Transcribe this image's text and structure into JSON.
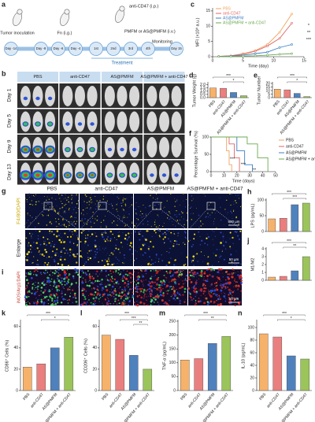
{
  "figure": {
    "a": {
      "label": "a",
      "inoculation": "Tumor inoculation",
      "fn": "Fn (i.g.)",
      "anti": "anti-CD47 (i.p.)",
      "pmfm": "PMFM or AS@PMFM (i.v.)",
      "monitoring": "Monitoring",
      "treatment": "Treatment",
      "days": [
        "Day -14",
        "Day -8",
        "Day -6",
        "Day -4",
        "1st",
        "2nd",
        "3rd",
        "4th",
        "Day 15"
      ]
    },
    "b": {
      "label": "b",
      "groups": [
        "PBS",
        "anti-CD47",
        "AS@PMFM",
        "AS@PMFM + anti-CD47"
      ],
      "rows": [
        "Day 1",
        "Day 5",
        "Day 9",
        "Day 13"
      ]
    },
    "g": {
      "label": "g",
      "groups": [
        "PBS",
        "anti-CD47",
        "AS@PMFM",
        "AS@PMFM + anti-CD47"
      ],
      "rows": [
        "F4/80/DAPI",
        "Enlarge"
      ],
      "scale_bars": [
        "500 μm",
        "50 μm"
      ]
    },
    "i": {
      "label": "i",
      "stain": "iNOS/Arg1/DAPI",
      "scale_bar": "50 μm"
    }
  },
  "chart_data": [
    {
      "label": "c",
      "type": "line",
      "x_label": "Time (day)",
      "y_label": "MFI (×10⁸ a.u.)",
      "x": [
        1,
        3,
        5,
        7,
        9,
        11,
        13
      ],
      "xlim": [
        0,
        15
      ],
      "xticks": [
        0,
        5,
        10,
        15
      ],
      "ylim": [
        0,
        16
      ],
      "yticks": [
        0,
        5,
        10,
        15
      ],
      "legend": "upper left",
      "markers": true,
      "series": [
        {
          "name": "PBS",
          "color": "#f0a35e",
          "values": [
            0.1,
            0.3,
            1,
            2,
            4,
            8,
            14
          ]
        },
        {
          "name": "anti-CD47",
          "color": "#e06666",
          "values": [
            0.1,
            0.3,
            0.8,
            1.8,
            3.5,
            6,
            11
          ]
        },
        {
          "name": "AS@PMFM",
          "color": "#3d7fc4",
          "values": [
            0.1,
            0.2,
            0.5,
            1,
            1.5,
            3,
            4
          ]
        },
        {
          "name": "AS@PMFM + anti-CD47",
          "color": "#6aa84f",
          "values": [
            0.1,
            0.1,
            0.2,
            0.3,
            0.5,
            0.8,
            1
          ]
        }
      ],
      "annotations": [
        "*",
        "**",
        "***"
      ]
    },
    {
      "label": "d",
      "type": "bar",
      "y_label": "Tumor Weight (g)",
      "categories": [
        "PBS",
        "anti-CD47",
        "AS@PMFM",
        "AS@PMFM + anti-CD47"
      ],
      "values": [
        1.5,
        1.45,
        0.8,
        0.3
      ],
      "colors": [
        "#f6b26b",
        "#ea7f7f",
        "#4f81bd",
        "#9bc45a"
      ],
      "ylim": [
        0,
        2.2
      ],
      "yticks": [
        {
          "value": 0,
          "label": "0.0"
        },
        0.5,
        {
          "value": 1,
          "label": "1.0"
        },
        1.5,
        {
          "value": 2,
          "label": "2.0"
        }
      ],
      "annotations": [
        "***",
        "*"
      ]
    },
    {
      "label": "e",
      "type": "bar",
      "y_label": "Tumor Number",
      "categories": [
        "PBS",
        "anti-CD47",
        "AS@PMFM",
        "AS@PMFM + anti-CD47"
      ],
      "values": [
        12,
        11,
        6,
        1.5
      ],
      "colors": [
        "#f6b26b",
        "#ea7f7f",
        "#4f81bd",
        "#9bc45a"
      ],
      "ylim": [
        0,
        20
      ],
      "yticks": [
        0,
        5,
        10,
        15,
        20
      ],
      "annotations": [
        "***",
        "*"
      ]
    },
    {
      "label": "f",
      "type": "line",
      "x_label": "Time (days)",
      "y_label": "Percentage Survival (%)",
      "xlim": [
        0,
        50
      ],
      "xticks": [
        0,
        10,
        20,
        30,
        40,
        50
      ],
      "ylim": [
        0,
        100
      ],
      "yticks": [
        0,
        50,
        100
      ],
      "legend": "right",
      "markers": false,
      "series": [
        {
          "name": "PBS",
          "color": "#f0a35e",
          "x": [
            0,
            12,
            12,
            14,
            14,
            16,
            16
          ],
          "values": [
            100,
            100,
            60,
            60,
            20,
            20,
            0
          ]
        },
        {
          "name": "anti-CD47",
          "color": "#e06666",
          "x": [
            0,
            14,
            14,
            18,
            18,
            22,
            22
          ],
          "values": [
            100,
            100,
            80,
            80,
            40,
            40,
            0
          ]
        },
        {
          "name": "AS@PMFM",
          "color": "#3d7fc4",
          "x": [
            0,
            20,
            20,
            26,
            26,
            32,
            32
          ],
          "values": [
            100,
            100,
            60,
            60,
            20,
            20,
            0
          ]
        },
        {
          "name": "AS@PMFM + anti-CD47",
          "color": "#6aa84f",
          "x": [
            0,
            28,
            28,
            36,
            36,
            44,
            44
          ],
          "values": [
            100,
            100,
            80,
            80,
            40,
            40,
            0
          ]
        }
      ],
      "annotations": [
        "***",
        "***",
        "**"
      ]
    },
    {
      "label": "h",
      "type": "bar",
      "y_label": "LPS (pg/mL)",
      "values": [
        40,
        42,
        85,
        90
      ],
      "colors": [
        "#f6b26b",
        "#ea7f7f",
        "#4f81bd",
        "#9bc45a"
      ],
      "ylim": [
        0,
        100
      ],
      "yticks": [
        0,
        50,
        100
      ],
      "annotations": [
        "***",
        "***"
      ]
    },
    {
      "label": "j",
      "type": "bar",
      "y_label": "M1/M2",
      "values": [
        0.4,
        0.5,
        1.2,
        3
      ],
      "colors": [
        "#f6b26b",
        "#ea7f7f",
        "#4f81bd",
        "#9bc45a"
      ],
      "ylim": [
        0,
        4
      ],
      "yticks": [
        0,
        1,
        2,
        3,
        4
      ],
      "annotations": [
        "***",
        "**"
      ]
    },
    {
      "label": "k",
      "type": "bar",
      "y_label": "CD86⁺ Cells (%)",
      "categories": [
        "PBS",
        "anti-CD47",
        "AS@PMFM",
        "AS@PMFM + anti-CD47"
      ],
      "values": [
        22,
        25,
        40,
        50
      ],
      "colors": [
        "#f6b26b",
        "#ea7f7f",
        "#4f81bd",
        "#9bc45a"
      ],
      "ylim": [
        0,
        65
      ],
      "yticks": [
        0,
        20,
        40,
        60
      ],
      "annotations": [
        "***",
        "*"
      ]
    },
    {
      "label": "l",
      "type": "bar",
      "y_label": "CD206⁺ Cells (%)",
      "categories": [
        "PBS",
        "anti-CD47",
        "AS@PMFM",
        "AS@PMFM + anti-CD47"
      ],
      "values": [
        52,
        48,
        33,
        20
      ],
      "colors": [
        "#f6b26b",
        "#ea7f7f",
        "#4f81bd",
        "#9bc45a"
      ],
      "ylim": [
        0,
        65
      ],
      "yticks": [
        0,
        20,
        40,
        60
      ],
      "annotations": [
        "***",
        "***",
        "**"
      ]
    },
    {
      "label": "m",
      "type": "bar",
      "y_label": "TNF-α (pg/mL)",
      "categories": [
        "PBS",
        "anti-CD47",
        "AS@PMFM",
        "AS@PMFM + anti-CD47"
      ],
      "values": [
        110,
        115,
        170,
        195
      ],
      "colors": [
        "#f6b26b",
        "#ea7f7f",
        "#4f81bd",
        "#9bc45a"
      ],
      "ylim": [
        0,
        250
      ],
      "yticks": [
        0,
        50,
        100,
        150,
        200,
        250
      ],
      "annotations": [
        "***",
        "**"
      ]
    },
    {
      "label": "n",
      "type": "bar",
      "y_label": "IL-10 (pg/mL)",
      "categories": [
        "PBS",
        "anti-CD47",
        "AS@PMFM",
        "AS@PMFM + anti-CD47"
      ],
      "values": [
        90,
        85,
        55,
        50
      ],
      "colors": [
        "#f6b26b",
        "#ea7f7f",
        "#4f81bd",
        "#9bc45a"
      ],
      "ylim": [
        0,
        110
      ],
      "yticks": [
        0,
        20,
        40,
        60,
        80,
        100
      ],
      "annotations": [
        "***",
        "*"
      ]
    }
  ]
}
